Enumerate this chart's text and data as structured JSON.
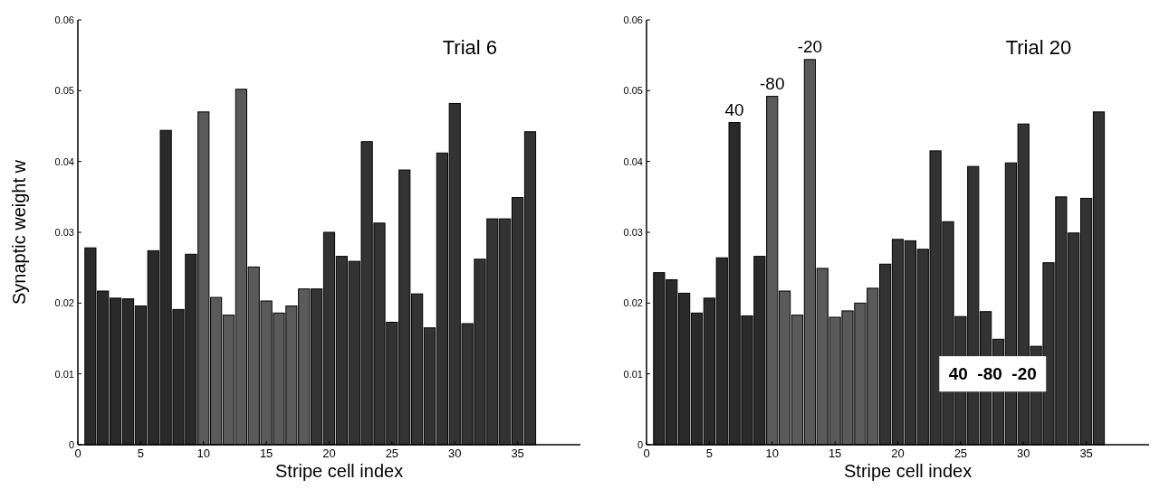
{
  "chart_data": [
    {
      "type": "bar",
      "title": "Trial 6",
      "xlabel": "Stripe cell index",
      "ylabel": "Synaptic weight w",
      "x": [
        1,
        2,
        3,
        4,
        5,
        6,
        7,
        8,
        9,
        10,
        11,
        12,
        13,
        14,
        15,
        16,
        17,
        18,
        19,
        20,
        21,
        22,
        23,
        24,
        25,
        26,
        27,
        28,
        29,
        30,
        31,
        32,
        33,
        34,
        35,
        36
      ],
      "values": [
        0.0278,
        0.0217,
        0.0207,
        0.0206,
        0.0196,
        0.0274,
        0.0444,
        0.0191,
        0.0269,
        0.047,
        0.0208,
        0.0183,
        0.0502,
        0.0251,
        0.0203,
        0.0186,
        0.0196,
        0.022,
        0.022,
        0.03,
        0.0266,
        0.0259,
        0.0428,
        0.0313,
        0.0173,
        0.0388,
        0.0213,
        0.0165,
        0.0412,
        0.0482,
        0.0171,
        0.0262,
        0.0319,
        0.0319,
        0.0349,
        0.0442
      ],
      "colors": [
        "#2a2a2a",
        "#2a2a2a",
        "#2a2a2a",
        "#2a2a2a",
        "#2a2a2a",
        "#2a2a2a",
        "#2a2a2a",
        "#2a2a2a",
        "#2a2a2a",
        "#5a5a5a",
        "#5a5a5a",
        "#5a5a5a",
        "#5a5a5a",
        "#5a5a5a",
        "#5a5a5a",
        "#5a5a5a",
        "#5a5a5a",
        "#5a5a5a",
        "#333333",
        "#333333",
        "#333333",
        "#333333",
        "#333333",
        "#333333",
        "#333333",
        "#333333",
        "#333333",
        "#333333",
        "#333333",
        "#333333",
        "#333333",
        "#333333",
        "#333333",
        "#333333",
        "#333333",
        "#333333"
      ],
      "xlim": [
        0,
        40
      ],
      "xticks": [
        0,
        5,
        10,
        15,
        20,
        25,
        30,
        35
      ],
      "ylim": [
        0,
        0.06
      ],
      "yticks": [
        0,
        0.01,
        0.02,
        0.03,
        0.04,
        0.05,
        0.06
      ],
      "grid": false
    },
    {
      "type": "bar",
      "title": "Trial 20",
      "xlabel": "Stripe cell index",
      "x": [
        1,
        2,
        3,
        4,
        5,
        6,
        7,
        8,
        9,
        10,
        11,
        12,
        13,
        14,
        15,
        16,
        17,
        18,
        19,
        20,
        21,
        22,
        23,
        24,
        25,
        26,
        27,
        28,
        29,
        30,
        31,
        32,
        33,
        34,
        35,
        36
      ],
      "values": [
        0.0243,
        0.0233,
        0.0214,
        0.0186,
        0.0207,
        0.0264,
        0.0455,
        0.0182,
        0.0266,
        0.0492,
        0.0217,
        0.0183,
        0.0544,
        0.0249,
        0.018,
        0.0189,
        0.02,
        0.0221,
        0.0255,
        0.029,
        0.0288,
        0.0276,
        0.0415,
        0.0315,
        0.0181,
        0.0393,
        0.0188,
        0.0149,
        0.0398,
        0.0453,
        0.0139,
        0.0257,
        0.035,
        0.0299,
        0.0348,
        0.047
      ],
      "colors": [
        "#2a2a2a",
        "#2a2a2a",
        "#2a2a2a",
        "#2a2a2a",
        "#2a2a2a",
        "#2a2a2a",
        "#2a2a2a",
        "#2a2a2a",
        "#2a2a2a",
        "#5a5a5a",
        "#5a5a5a",
        "#5a5a5a",
        "#5a5a5a",
        "#5a5a5a",
        "#5a5a5a",
        "#5a5a5a",
        "#5a5a5a",
        "#5a5a5a",
        "#333333",
        "#333333",
        "#333333",
        "#333333",
        "#333333",
        "#333333",
        "#333333",
        "#333333",
        "#333333",
        "#333333",
        "#333333",
        "#333333",
        "#333333",
        "#333333",
        "#333333",
        "#333333",
        "#333333",
        "#333333"
      ],
      "annotations": [
        {
          "text": "40",
          "x": 7,
          "y": 0.0455
        },
        {
          "text": "-80",
          "x": 10,
          "y": 0.0492
        },
        {
          "text": "-20",
          "x": 13,
          "y": 0.0544
        },
        "40  -80  -20"
      ],
      "xlim": [
        0,
        40
      ],
      "xticks": [
        0,
        5,
        10,
        15,
        20,
        25,
        30,
        35
      ],
      "ylim": [
        0,
        0.06
      ],
      "yticks": [
        0,
        0.01,
        0.02,
        0.03,
        0.04,
        0.05,
        0.06
      ],
      "grid": false
    }
  ]
}
